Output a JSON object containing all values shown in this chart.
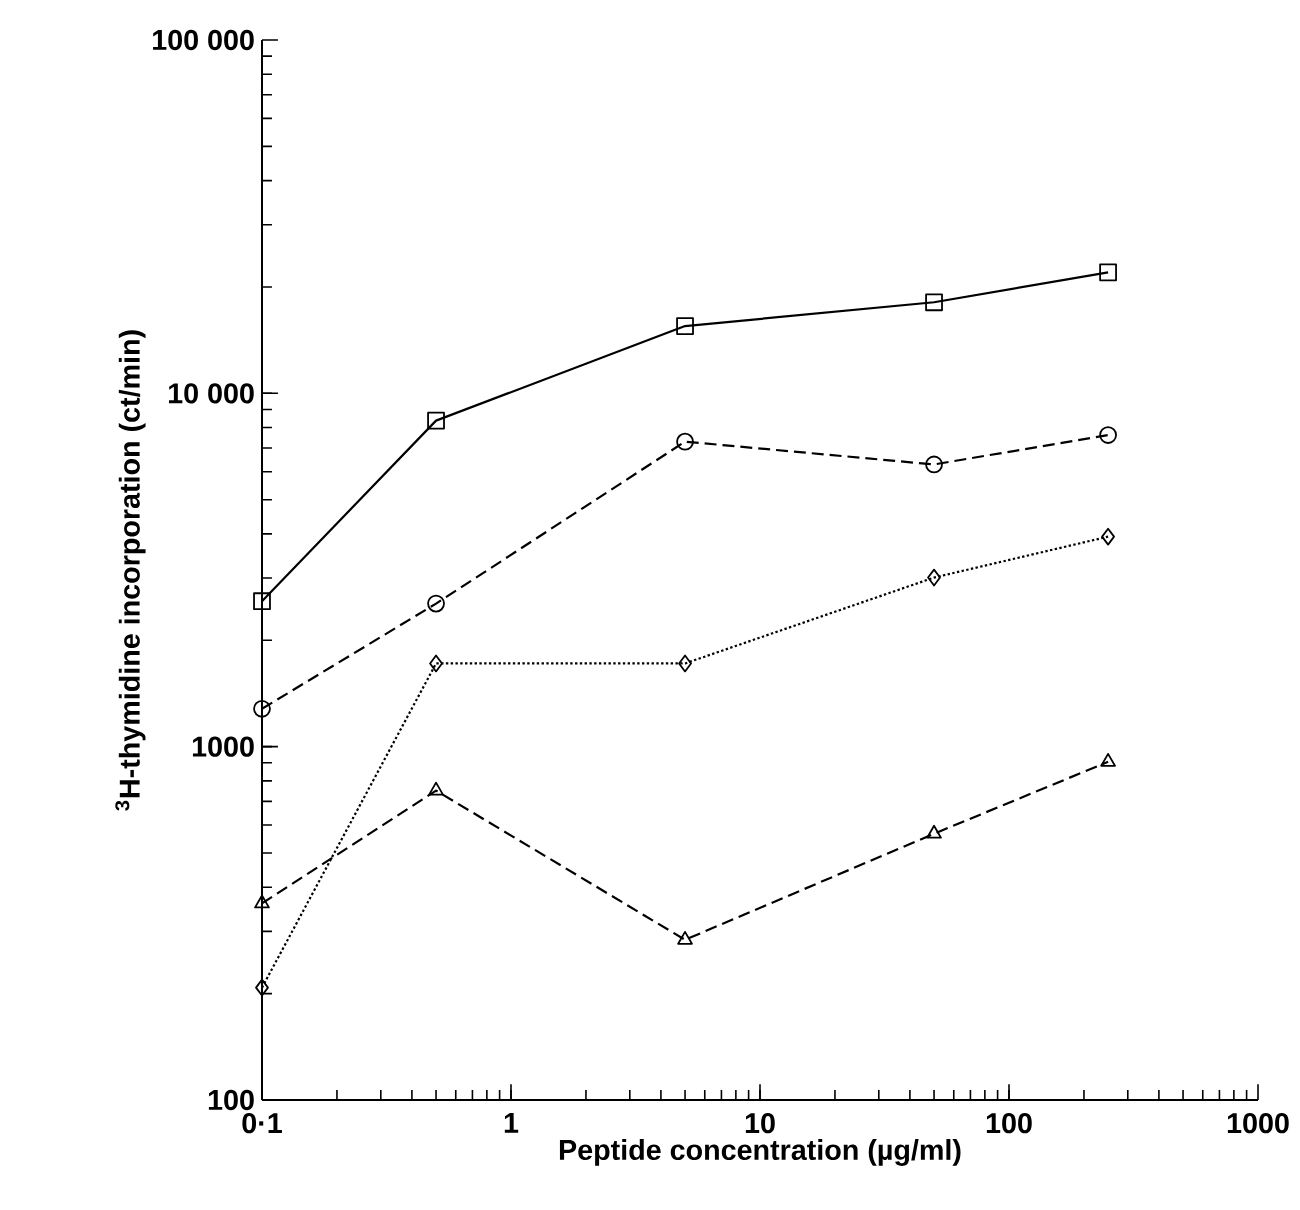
{
  "chart_data": {
    "type": "line",
    "xlabel": "Peptide concentration (µg/ml)",
    "ylabel": "$^{3}$H-thymidine incorporation (ct/min)",
    "log": "xy",
    "xlim": [
      0.1,
      1000
    ],
    "ylim": [
      100,
      100000
    ],
    "xticks": [
      {
        "value": 0.1,
        "label": "0·1"
      },
      1,
      10,
      100,
      1000
    ],
    "yticks": [
      100,
      {
        "value": 1000,
        "label": "1000"
      },
      {
        "value": 10000,
        "label": "10 000"
      },
      {
        "value": 100000,
        "label": "100 000"
      }
    ],
    "x": [
      0.1,
      0.5,
      5,
      50,
      250
    ],
    "series": [
      {
        "color": "#000000",
        "marker": "square",
        "line_style": "solid",
        "values": [
          2580,
          8370,
          15500,
          18100,
          22000
        ]
      },
      {
        "color": "#000000",
        "marker": "circle",
        "line_style": "dashed",
        "values": [
          1280,
          2540,
          7300,
          6290,
          7620
        ]
      },
      {
        "color": "#000000",
        "marker": "diamond",
        "line_style": "dotted",
        "values": [
          208,
          1720,
          1720,
          3010,
          3930
        ]
      },
      {
        "color": "#000000",
        "marker": "triangle",
        "line_style": "dashed",
        "values": [
          360,
          751,
          284,
          567,
          906
        ]
      }
    ]
  }
}
